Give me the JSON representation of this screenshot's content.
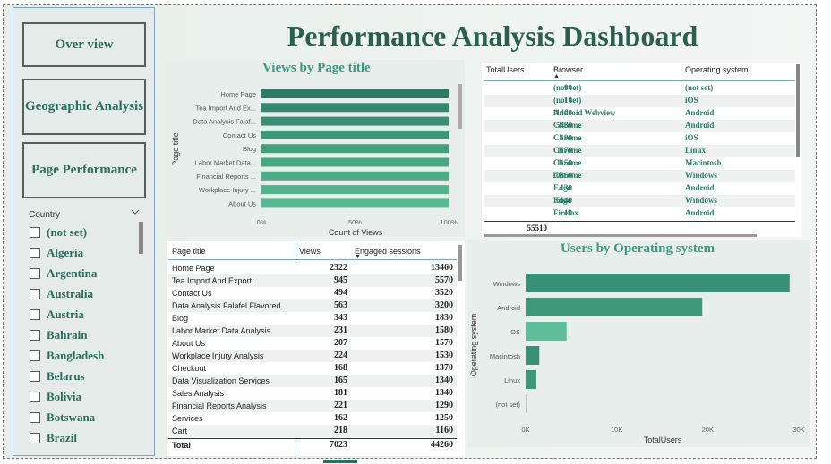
{
  "page_title": "Performance Analysis Dashboard",
  "nav": {
    "overview": "Over view",
    "geographic": "Geographic Analysis",
    "page_performance": "Page Performance"
  },
  "slicer": {
    "header": "Country",
    "items": [
      "(not set)",
      "Algeria",
      "Argentina",
      "Australia",
      "Austria",
      "Bahrain",
      "Bangladesh",
      "Belarus",
      "Bolivia",
      "Botswana",
      "Brazil"
    ]
  },
  "views_chart": {
    "title": "Views by Page title",
    "ylabel": "Page title",
    "xlabel": "Count of Views",
    "ticks": [
      "0%",
      "50%",
      "100%"
    ],
    "categories": [
      "Home Page",
      "Tea Import And Ex...",
      "Data Analysis Falaf...",
      "Contact Us",
      "Blog",
      "Labor Market Data...",
      "Financial Reports ...",
      "Workplace Injury ...",
      "About Us"
    ],
    "values": [
      100,
      100,
      100,
      100,
      100,
      100,
      100,
      100,
      100
    ],
    "colors": [
      "#2e7a63",
      "#34876d",
      "#3a9074",
      "#3f977a",
      "#43a07f",
      "#48a684",
      "#4dad89",
      "#53b38e",
      "#58b893"
    ]
  },
  "browser_table": {
    "headers": [
      "TotalUsers",
      "Browser",
      "Operating system"
    ],
    "rows": [
      [
        "90",
        "(not set)",
        "(not set)"
      ],
      [
        "10",
        "(not set)",
        "iOS"
      ],
      [
        "11400",
        "Android Webview",
        "Android"
      ],
      [
        "5480",
        "Chrome",
        "Android"
      ],
      [
        "190",
        "Chrome",
        "iOS"
      ],
      [
        "1170",
        "Chrome",
        "Linux"
      ],
      [
        "1150",
        "Chrome",
        "Macintosh"
      ],
      [
        "20860",
        "Chrome",
        "Windows"
      ],
      [
        "130",
        "Edge",
        "Android"
      ],
      [
        "6640",
        "Edge",
        "Windows"
      ],
      [
        "10",
        "Firefox",
        "Android"
      ]
    ],
    "total": "55510"
  },
  "page_table": {
    "headers": [
      "Page title",
      "Views",
      "Engaged sessions"
    ],
    "rows": [
      [
        "Home Page",
        "2322",
        "13460"
      ],
      [
        "Tea Import And Export",
        "945",
        "5570"
      ],
      [
        "Contact Us",
        "494",
        "3520"
      ],
      [
        "Data Analysis Falafel Flavored",
        "563",
        "3200"
      ],
      [
        "Blog",
        "343",
        "1830"
      ],
      [
        "Labor Market Data Analysis",
        "231",
        "1580"
      ],
      [
        "About Us",
        "207",
        "1570"
      ],
      [
        "Workplace Injury Analysis",
        "224",
        "1530"
      ],
      [
        "Checkout",
        "168",
        "1370"
      ],
      [
        "Data Visualization Services",
        "165",
        "1340"
      ],
      [
        "Sales Analysis",
        "181",
        "1340"
      ],
      [
        "Financial Reports Analysis",
        "221",
        "1290"
      ],
      [
        "Services",
        "162",
        "1250"
      ],
      [
        "Cart",
        "218",
        "1160"
      ]
    ],
    "total": [
      "Total",
      "7023",
      "44260"
    ]
  },
  "chart_data": {
    "type": "bar",
    "title": "Users by Operating system",
    "xlabel": "TotalUsers",
    "ylabel": "Operating system",
    "categories": [
      "Windows",
      "Android",
      "iOS",
      "Macintosh",
      "Linux",
      "(not set)"
    ],
    "values": [
      29000,
      19400,
      4500,
      1500,
      1170,
      100
    ],
    "xlim": [
      0,
      30000
    ],
    "ticks": [
      "0K",
      "10K",
      "20K",
      "30K"
    ],
    "colors": [
      "#3a9074",
      "#3f977a",
      "#5fbd9c",
      "#3a9074",
      "#3f977a",
      "#9ccfbf"
    ]
  }
}
